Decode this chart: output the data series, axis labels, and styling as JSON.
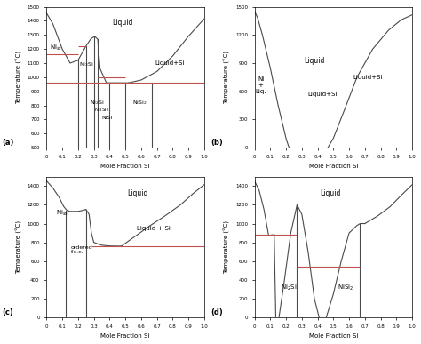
{
  "background": "#ffffff",
  "line_color": "#4a4a4a",
  "hline_color": "#c0504d",
  "xlabel": "Mole Fraction Si",
  "ylabel": "Temperature (°C)",
  "panel_a": {
    "ylim": [
      500,
      1500
    ],
    "xlim": [
      0,
      1.0
    ],
    "yticks": [
      500,
      600,
      700,
      800,
      900,
      1000,
      1100,
      1200,
      1300,
      1400,
      1500
    ],
    "xticks": [
      0,
      0.1,
      0.2,
      0.3,
      0.4,
      0.5,
      0.6,
      0.7,
      0.8,
      0.9,
      1.0
    ],
    "liquidus_x": [
      0.0,
      0.04,
      0.1,
      0.15,
      0.2,
      0.22,
      0.25,
      0.28,
      0.305,
      0.325,
      0.34,
      0.38,
      0.42,
      0.48,
      0.52
    ],
    "liquidus_y": [
      1455,
      1380,
      1200,
      1100,
      1120,
      1160,
      1220,
      1270,
      1290,
      1270,
      1060,
      960,
      960,
      960,
      960
    ],
    "si_liquidus_x": [
      0.52,
      0.6,
      0.7,
      0.8,
      0.9,
      1.0
    ],
    "si_liquidus_y": [
      960,
      980,
      1040,
      1150,
      1290,
      1414
    ],
    "vlines": [
      [
        0.2,
        500,
        1120
      ],
      [
        0.25,
        500,
        1220
      ],
      [
        0.3,
        500,
        1290
      ],
      [
        0.325,
        500,
        1270
      ],
      [
        0.4,
        500,
        960
      ],
      [
        0.5,
        500,
        960
      ],
      [
        0.67,
        500,
        960
      ]
    ],
    "hlines_red": [
      [
        1160,
        0.0,
        0.2
      ],
      [
        1220,
        0.2,
        0.25
      ],
      [
        960,
        0.0,
        0.52
      ],
      [
        1000,
        0.325,
        0.5
      ],
      [
        960,
        0.52,
        1.0
      ]
    ],
    "labels": [
      [
        0.48,
        1370,
        "Liquid",
        5.5,
        "center"
      ],
      [
        0.78,
        1090,
        "Liquid+Si",
        5.0,
        "center"
      ],
      [
        0.02,
        1195,
        "Ni$_{ss}$",
        5.0,
        "left"
      ],
      [
        0.205,
        1080,
        "Ni$_3$Si",
        4.5,
        "left"
      ],
      [
        0.272,
        810,
        "Ni$_2$Si",
        4.5,
        "left"
      ],
      [
        0.305,
        760,
        "Ni$_3$Si$_2$",
        4.0,
        "left"
      ],
      [
        0.35,
        700,
        "NiSi",
        4.5,
        "left"
      ],
      [
        0.545,
        810,
        "NiSi$_2$",
        4.5,
        "left"
      ]
    ]
  },
  "panel_b": {
    "ylim": [
      0,
      1500
    ],
    "xlim": [
      0,
      1.0
    ],
    "yticks": [
      0,
      300,
      600,
      900,
      1200,
      1500
    ],
    "xticks": [
      0,
      0.1,
      0.2,
      0.3,
      0.4,
      0.5,
      0.6,
      0.7,
      0.8,
      0.9,
      1.0
    ],
    "curve_x": [
      0.0,
      0.02,
      0.05,
      0.1,
      0.15,
      0.2,
      0.22,
      0.24,
      0.3,
      0.37,
      0.43,
      0.465,
      0.5,
      0.57,
      0.65,
      0.75,
      0.85,
      0.93,
      1.0
    ],
    "curve_y": [
      1455,
      1380,
      1200,
      900,
      600,
      200,
      50,
      0,
      0,
      0,
      0,
      0,
      0,
      100,
      400,
      800,
      1100,
      1300,
      1414
    ],
    "labels": [
      [
        0.38,
        900,
        "Liquid",
        5.5,
        "center"
      ],
      [
        0.43,
        550,
        "Liquid+Si",
        5.0,
        "center"
      ],
      [
        0.72,
        730,
        "Liquid+Si",
        5.0,
        "center"
      ],
      [
        0.04,
        580,
        "Ni\n+\nLiq.",
        5.0,
        "center"
      ]
    ]
  },
  "panel_c": {
    "ylim": [
      0,
      1500
    ],
    "xlim": [
      0,
      1.0
    ],
    "yticks": [
      0,
      200,
      400,
      600,
      800,
      1000,
      1200,
      1400
    ],
    "xticks": [
      0,
      0.1,
      0.2,
      0.3,
      0.4,
      0.5,
      0.6,
      0.7,
      0.8,
      0.9,
      1.0
    ],
    "left_x": [
      0.0,
      0.04,
      0.08,
      0.11,
      0.13,
      0.15,
      0.2,
      0.23,
      0.25
    ],
    "left_y": [
      1455,
      1380,
      1280,
      1180,
      1140,
      1130,
      1130,
      1140,
      1150
    ],
    "mid_x": [
      0.25,
      0.27,
      0.285,
      0.3,
      0.35,
      0.4,
      0.45,
      0.475
    ],
    "mid_y": [
      1150,
      1100,
      900,
      800,
      770,
      762,
      760,
      760
    ],
    "right_x": [
      0.475,
      0.55,
      0.65,
      0.75,
      0.85,
      0.93,
      1.0
    ],
    "right_y": [
      760,
      850,
      970,
      1080,
      1200,
      1320,
      1414
    ],
    "vlines": [
      [
        0.12,
        0,
        1135
      ],
      [
        0.25,
        0,
        1150
      ]
    ],
    "hlines_red": [
      [
        760,
        0.285,
        1.0
      ]
    ],
    "labels": [
      [
        0.58,
        1300,
        "Liquid",
        5.5,
        "center"
      ],
      [
        0.68,
        930,
        "Liquid + Si",
        5.0,
        "center"
      ],
      [
        0.06,
        1090,
        "Ni$_{ss}$",
        5.0,
        "left"
      ],
      [
        0.155,
        680,
        "ordered\nf.c.c.",
        4.5,
        "left"
      ]
    ]
  },
  "panel_d": {
    "ylim": [
      0,
      1500
    ],
    "xlim": [
      0,
      1.0
    ],
    "yticks": [
      0,
      200,
      400,
      600,
      800,
      1000,
      1200,
      1400
    ],
    "xticks": [
      0,
      0.1,
      0.2,
      0.3,
      0.4,
      0.5,
      0.6,
      0.7,
      0.8,
      0.9,
      1.0
    ],
    "curve_x": [
      0.0,
      0.03,
      0.07,
      0.1,
      0.12,
      0.135,
      0.155,
      0.18,
      0.22,
      0.255,
      0.27,
      0.3,
      0.38,
      0.41,
      0.42,
      0.455,
      0.5,
      0.56,
      0.65,
      0.75,
      0.85,
      0.93,
      1.0
    ],
    "curve_y": [
      1455,
      1350,
      1100,
      870,
      880,
      900,
      880,
      500,
      0,
      0,
      0,
      0,
      600,
      880,
      900,
      540,
      0,
      0,
      200,
      550,
      900,
      1200,
      1414
    ],
    "vlines": [
      [
        0.27,
        0,
        1200
      ],
      [
        0.67,
        0,
        1000
      ]
    ],
    "hlines_red": [
      [
        880,
        0.0,
        0.27
      ],
      [
        540,
        0.27,
        0.67
      ]
    ],
    "labels": [
      [
        0.48,
        1300,
        "Liquid",
        5.5,
        "center"
      ],
      [
        0.22,
        300,
        "Ni$_2$Si",
        5.0,
        "center"
      ],
      [
        0.58,
        300,
        "NiSi$_2$",
        5.0,
        "center"
      ]
    ]
  }
}
